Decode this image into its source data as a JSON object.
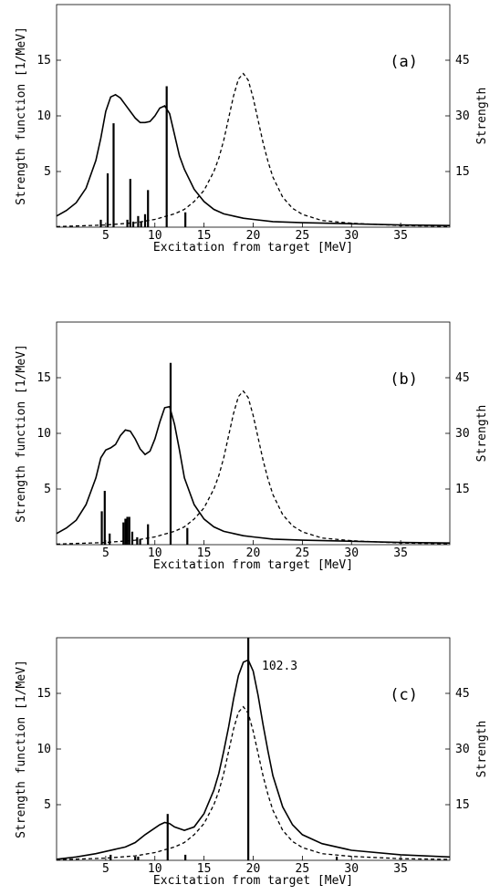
{
  "chart_data": [
    {
      "type": "line",
      "panel_label": "(a)",
      "xlabel": "Excitation from target [MeV]",
      "ylabel": "Strength function [1/MeV]",
      "y2label": "Strength",
      "xlim": [
        0,
        40
      ],
      "ylim": [
        0,
        20
      ],
      "y2lim": [
        0,
        60
      ],
      "xticks": [
        5,
        10,
        15,
        20,
        25,
        30,
        35
      ],
      "yticks": [
        5,
        10,
        15
      ],
      "y2ticks": [
        15,
        30,
        45
      ],
      "series": [
        {
          "style": "solid",
          "x": [
            0,
            1,
            2,
            3,
            4,
            4.5,
            5,
            5.5,
            6,
            6.5,
            7,
            7.5,
            8,
            8.5,
            9,
            9.5,
            10,
            10.5,
            11,
            11.5,
            12,
            12.5,
            13,
            14,
            15,
            16,
            17,
            18,
            19,
            20,
            22,
            25,
            30,
            35,
            40
          ],
          "y": [
            1.0,
            1.5,
            2.2,
            3.5,
            6.0,
            8.0,
            10.4,
            11.7,
            11.9,
            11.6,
            11.0,
            10.4,
            9.8,
            9.4,
            9.4,
            9.5,
            10.0,
            10.7,
            10.9,
            10.2,
            8.3,
            6.4,
            5.2,
            3.4,
            2.3,
            1.6,
            1.2,
            1.0,
            0.8,
            0.7,
            0.5,
            0.4,
            0.3,
            0.2,
            0.15
          ]
        },
        {
          "style": "dashed",
          "x": [
            0,
            5,
            8,
            10,
            12,
            13,
            14,
            15,
            16,
            16.5,
            17,
            17.5,
            18,
            18.5,
            19,
            19.5,
            20,
            20.5,
            21,
            21.5,
            22,
            23,
            24,
            25,
            27,
            30,
            35,
            40
          ],
          "y": [
            0.05,
            0.2,
            0.4,
            0.7,
            1.2,
            1.6,
            2.3,
            3.3,
            5.0,
            6.2,
            7.8,
            9.8,
            11.8,
            13.3,
            13.8,
            13.2,
            11.6,
            9.6,
            7.6,
            5.9,
            4.5,
            2.7,
            1.7,
            1.15,
            0.6,
            0.35,
            0.15,
            0.08
          ]
        }
      ],
      "bars_strength": [
        {
          "x": 4.5,
          "s": 2.0
        },
        {
          "x": 5.2,
          "s": 14.5
        },
        {
          "x": 5.8,
          "s": 28.0
        },
        {
          "x": 7.2,
          "s": 2.0
        },
        {
          "x": 7.5,
          "s": 13.0
        },
        {
          "x": 7.8,
          "s": 1.5
        },
        {
          "x": 8.3,
          "s": 3.0
        },
        {
          "x": 8.6,
          "s": 1.5
        },
        {
          "x": 9.0,
          "s": 3.5
        },
        {
          "x": 9.3,
          "s": 10.0
        },
        {
          "x": 11.2,
          "s": 38.0
        },
        {
          "x": 13.1,
          "s": 4.0
        }
      ]
    },
    {
      "type": "line",
      "panel_label": "(b)",
      "xlabel": "Excitation from target [MeV]",
      "ylabel": "Strength function [1/MeV]",
      "y2label": "Strength",
      "xlim": [
        0,
        40
      ],
      "ylim": [
        0,
        20
      ],
      "y2lim": [
        0,
        60
      ],
      "xticks": [
        5,
        10,
        15,
        20,
        25,
        30,
        35
      ],
      "yticks": [
        5,
        10,
        15
      ],
      "y2ticks": [
        15,
        30,
        45
      ],
      "series": [
        {
          "style": "solid",
          "x": [
            0,
            1,
            2,
            3,
            4,
            4.5,
            5,
            5.5,
            6,
            6.5,
            7,
            7.5,
            8,
            8.5,
            9,
            9.5,
            10,
            10.5,
            11,
            11.5,
            12,
            12.5,
            13,
            14,
            15,
            16,
            17,
            18,
            19,
            20,
            22,
            25,
            30,
            35,
            40
          ],
          "y": [
            1.0,
            1.5,
            2.2,
            3.6,
            6.0,
            7.8,
            8.5,
            8.7,
            9.0,
            9.8,
            10.3,
            10.2,
            9.5,
            8.6,
            8.1,
            8.4,
            9.5,
            11.0,
            12.3,
            12.4,
            10.8,
            8.5,
            6.0,
            3.6,
            2.3,
            1.6,
            1.2,
            1.0,
            0.8,
            0.7,
            0.5,
            0.4,
            0.3,
            0.2,
            0.15
          ]
        },
        {
          "style": "dashed",
          "x": [
            0,
            5,
            8,
            10,
            12,
            13,
            14,
            15,
            16,
            16.5,
            17,
            17.5,
            18,
            18.5,
            19,
            19.5,
            20,
            20.5,
            21,
            21.5,
            22,
            23,
            24,
            25,
            27,
            30,
            35,
            40
          ],
          "y": [
            0.05,
            0.2,
            0.4,
            0.7,
            1.2,
            1.6,
            2.3,
            3.3,
            5.0,
            6.2,
            7.8,
            9.8,
            11.8,
            13.3,
            13.8,
            13.2,
            11.6,
            9.6,
            7.6,
            5.9,
            4.5,
            2.7,
            1.7,
            1.15,
            0.6,
            0.35,
            0.15,
            0.08
          ]
        }
      ],
      "bars_strength": [
        {
          "x": 4.6,
          "s": 9.0
        },
        {
          "x": 4.9,
          "s": 14.5
        },
        {
          "x": 5.4,
          "s": 3.0
        },
        {
          "x": 6.8,
          "s": 6.0
        },
        {
          "x": 7.0,
          "s": 7.0
        },
        {
          "x": 7.2,
          "s": 7.5
        },
        {
          "x": 7.4,
          "s": 7.5
        },
        {
          "x": 7.7,
          "s": 3.5
        },
        {
          "x": 8.2,
          "s": 2.0
        },
        {
          "x": 8.5,
          "s": 1.5
        },
        {
          "x": 9.3,
          "s": 5.5
        },
        {
          "x": 11.6,
          "s": 49.0
        },
        {
          "x": 13.3,
          "s": 4.5
        }
      ]
    },
    {
      "type": "line",
      "panel_label": "(c)",
      "xlabel": "Excitation from target [MeV]",
      "ylabel": "Strength function [1/MeV]",
      "y2label": "Strength",
      "xlim": [
        0,
        40
      ],
      "ylim": [
        0,
        20
      ],
      "y2lim": [
        0,
        60
      ],
      "xticks": [
        5,
        10,
        15,
        20,
        25,
        30,
        35
      ],
      "yticks": [
        5,
        10,
        15
      ],
      "y2ticks": [
        15,
        30,
        45
      ],
      "annotation": "102.3",
      "series": [
        {
          "style": "solid",
          "x": [
            0,
            2,
            4,
            6,
            7,
            8,
            9,
            10,
            10.5,
            11,
            11.5,
            12,
            13,
            14,
            15,
            16,
            16.5,
            17,
            17.5,
            18,
            18.5,
            19,
            19.5,
            20,
            20.5,
            21,
            21.5,
            22,
            23,
            24,
            25,
            27,
            30,
            35,
            40
          ],
          "y": [
            0.1,
            0.3,
            0.6,
            1.0,
            1.2,
            1.6,
            2.3,
            2.9,
            3.2,
            3.4,
            3.3,
            3.0,
            2.7,
            3.0,
            4.2,
            6.3,
            7.8,
            9.8,
            12.0,
            14.5,
            16.6,
            17.8,
            18.0,
            17.0,
            14.8,
            12.2,
            9.8,
            7.6,
            4.8,
            3.2,
            2.3,
            1.5,
            0.9,
            0.5,
            0.3
          ]
        },
        {
          "style": "dashed",
          "x": [
            0,
            5,
            8,
            10,
            12,
            13,
            14,
            15,
            16,
            16.5,
            17,
            17.5,
            18,
            18.5,
            19,
            19.5,
            20,
            20.5,
            21,
            21.5,
            22,
            23,
            24,
            25,
            27,
            30,
            35,
            40
          ],
          "y": [
            0.05,
            0.2,
            0.4,
            0.7,
            1.2,
            1.6,
            2.3,
            3.3,
            5.0,
            6.2,
            7.8,
            9.8,
            11.8,
            13.3,
            13.8,
            13.2,
            11.6,
            9.6,
            7.6,
            5.9,
            4.5,
            2.7,
            1.7,
            1.15,
            0.6,
            0.35,
            0.15,
            0.08
          ]
        }
      ],
      "bars_strength": [
        {
          "x": 5.5,
          "s": 1.5
        },
        {
          "x": 8.0,
          "s": 1.0
        },
        {
          "x": 8.3,
          "s": 1.0
        },
        {
          "x": 11.3,
          "s": 12.5
        },
        {
          "x": 13.1,
          "s": 1.5
        },
        {
          "x": 19.5,
          "s": 102.3
        },
        {
          "x": 28.5,
          "s": 1.0
        }
      ]
    }
  ]
}
